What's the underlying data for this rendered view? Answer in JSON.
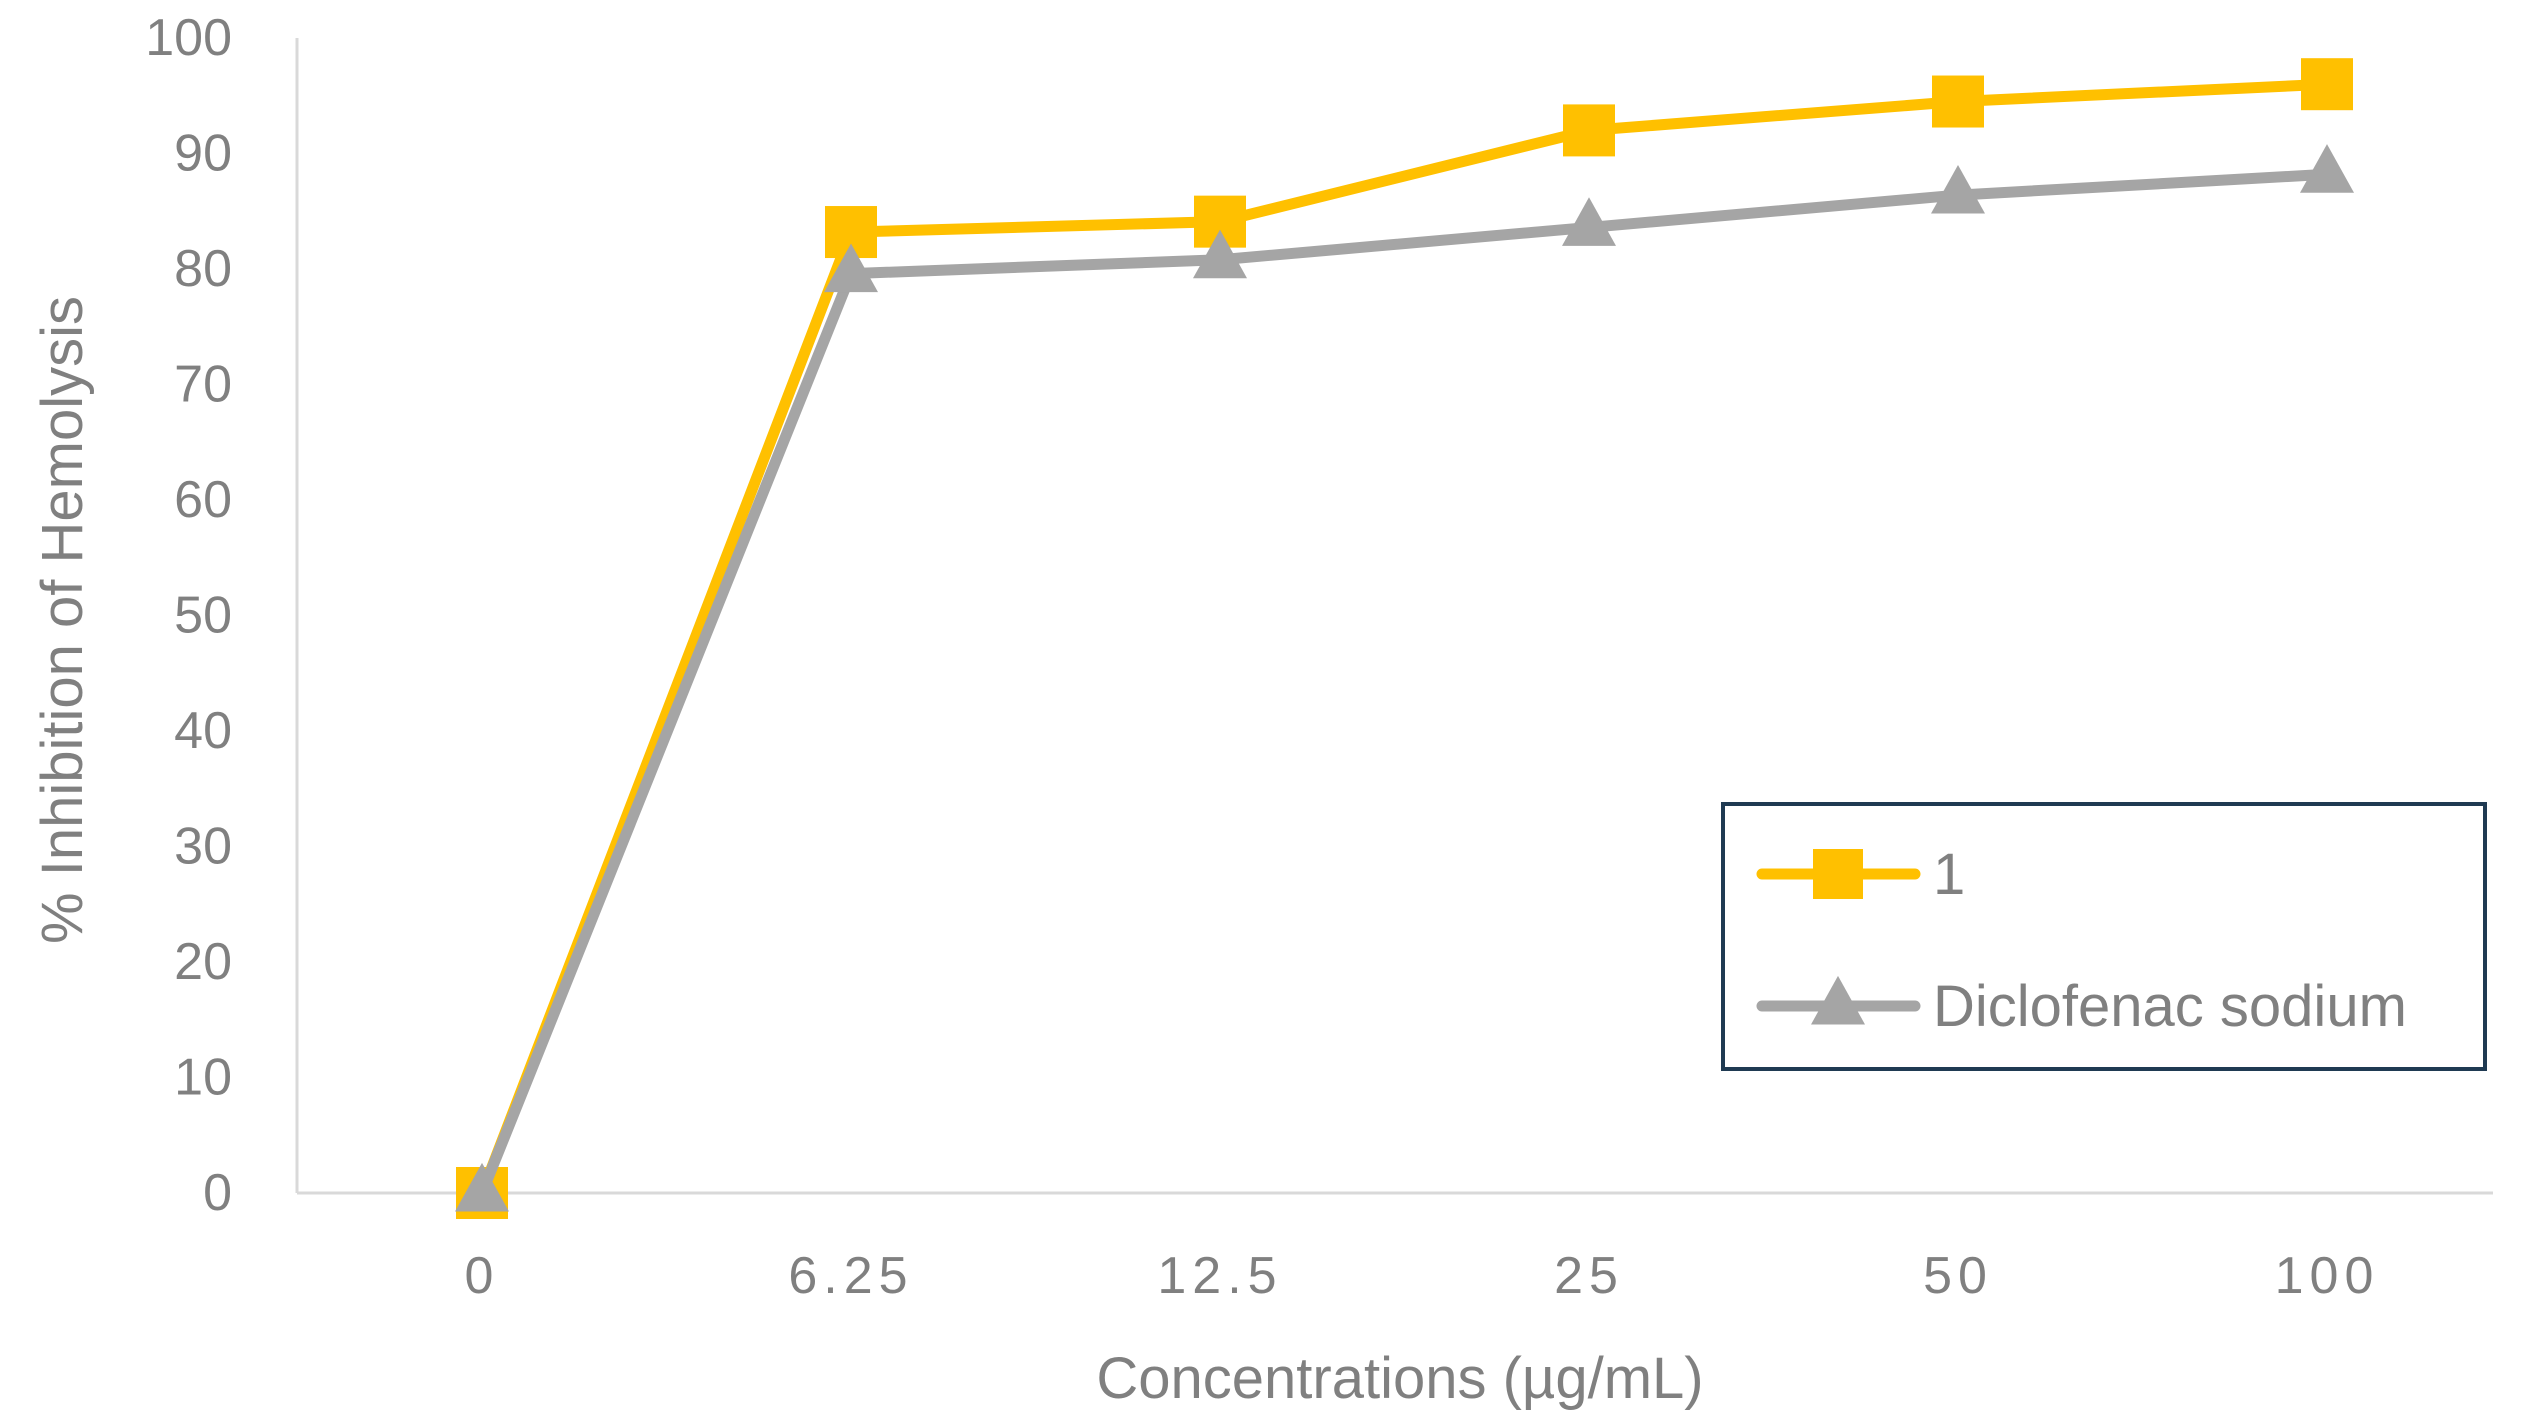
{
  "chart_data": {
    "type": "line",
    "title": "",
    "xlabel": "Concentrations (µg/mL)",
    "ylabel": "% Inhibition of Hemolysis",
    "categories": [
      "0",
      "6.25",
      "12.5",
      "25",
      "50",
      "100"
    ],
    "ylim": [
      0,
      100
    ],
    "yticks": [
      "0",
      "10",
      "20",
      "30",
      "40",
      "50",
      "60",
      "70",
      "80",
      "90",
      "100"
    ],
    "grid": false,
    "legend_position": "bottom-right",
    "series": [
      {
        "name": "1",
        "marker": "square",
        "color": "#FFC000",
        "values": [
          0,
          83.2,
          84.1,
          92.0,
          94.5,
          96.0
        ]
      },
      {
        "name": "Diclofenac sodium",
        "marker": "triangle",
        "color": "#A5A5A5",
        "values": [
          0,
          79.6,
          80.8,
          83.6,
          86.4,
          88.2
        ]
      }
    ],
    "axis_color": "#D9D9D9",
    "text_color": "#808080",
    "legend_border_color": "#1F3A52"
  }
}
